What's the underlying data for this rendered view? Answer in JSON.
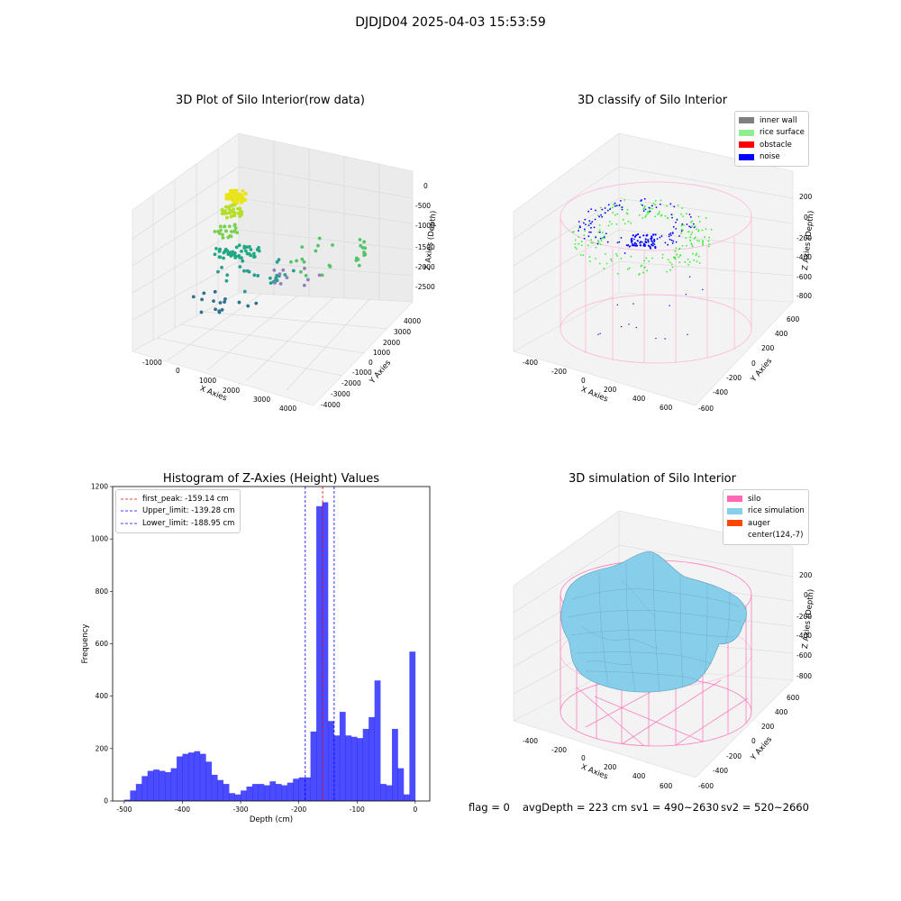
{
  "suptitle": "DJDJD04 2025-04-03 15:53:59",
  "panels": {
    "raw": {
      "title": "3D Plot of Silo Interior(row data)",
      "xlabel": "X Axies",
      "ylabel": "Y Axies",
      "zlabel": "Z Axies (Depth)",
      "xticks": [
        "-1000",
        "0",
        "1000",
        "2000",
        "3000",
        "4000"
      ],
      "yticks": [
        "4000",
        "3000",
        "2000",
        "1000",
        "0",
        "-1000",
        "-2000",
        "-3000",
        "-4000"
      ],
      "zticks": [
        "0",
        "-500",
        "-1000",
        "-1500",
        "-2000",
        "-2500"
      ]
    },
    "classify": {
      "title": "3D classify of Silo Interior",
      "xlabel": "X Axies",
      "ylabel": "Y Axies",
      "zlabel": "Z Axies (Depth)",
      "xticks": [
        "-400",
        "-200",
        "0",
        "200",
        "400",
        "600"
      ],
      "yticks": [
        "600",
        "400",
        "200",
        "0",
        "-200",
        "-400",
        "-600"
      ],
      "zticks": [
        "200",
        "0",
        "-200",
        "-400",
        "-600",
        "-800"
      ],
      "legend": [
        {
          "label": "inner wall",
          "color": "#808080"
        },
        {
          "label": "rice surface",
          "color": "#90ee90"
        },
        {
          "label": "obstacle",
          "color": "#ff0000"
        },
        {
          "label": "noise",
          "color": "#0000ff"
        }
      ]
    },
    "simulation": {
      "title": "3D simulation of Silo Interior",
      "xlabel": "X Axies",
      "ylabel": "Y Axies",
      "zlabel": "Z Axies (Depth)",
      "xticks": [
        "-400",
        "-200",
        "0",
        "200",
        "400",
        "600"
      ],
      "yticks": [
        "600",
        "400",
        "200",
        "0",
        "-200",
        "-400",
        "-600"
      ],
      "zticks": [
        "200",
        "0",
        "-200",
        "-400",
        "-600",
        "-800"
      ],
      "legend": [
        {
          "label": "silo",
          "color": "#ff69b4"
        },
        {
          "label": "rice simulation",
          "color": "#87ceeb"
        },
        {
          "label": "auger",
          "color": "#ff4500"
        },
        {
          "label": "center(124,-7)",
          "color": ""
        }
      ]
    }
  },
  "chart_data": {
    "type": "bar",
    "title": "Histogram of Z-Axies (Height) Values",
    "xlabel": "Depth (cm)",
    "ylabel": "Frequency",
    "xlim": [
      -520,
      25
    ],
    "ylim": [
      0,
      1200
    ],
    "xticks": [
      -500,
      -400,
      -300,
      -200,
      -100,
      0
    ],
    "yticks": [
      0,
      200,
      400,
      600,
      800,
      1000,
      1200
    ],
    "bin_start": -500,
    "bin_width": 10,
    "values": [
      5,
      40,
      65,
      95,
      115,
      120,
      115,
      110,
      125,
      170,
      180,
      185,
      190,
      180,
      150,
      100,
      80,
      65,
      30,
      25,
      40,
      55,
      65,
      65,
      60,
      75,
      65,
      60,
      70,
      85,
      90,
      90,
      265,
      1125,
      1140,
      305,
      250,
      340,
      250,
      245,
      240,
      275,
      320,
      460,
      65,
      60,
      275,
      125,
      25,
      570
    ],
    "lines": [
      {
        "label": "first_peak: -159.14 cm",
        "x": -159.14,
        "color": "#ff0000"
      },
      {
        "label": "Upper_limit: -139.28 cm",
        "x": -139.28,
        "color": "#0000ff"
      },
      {
        "label": "Lower_limit: -188.95 cm",
        "x": -188.95,
        "color": "#0000ff"
      }
    ]
  },
  "status": {
    "flag": "flag = 0",
    "avg_depth": "avgDepth = 223 cm",
    "sv1": "sv1 = 490~2630",
    "sv2": "sv2 = 520~2660"
  }
}
